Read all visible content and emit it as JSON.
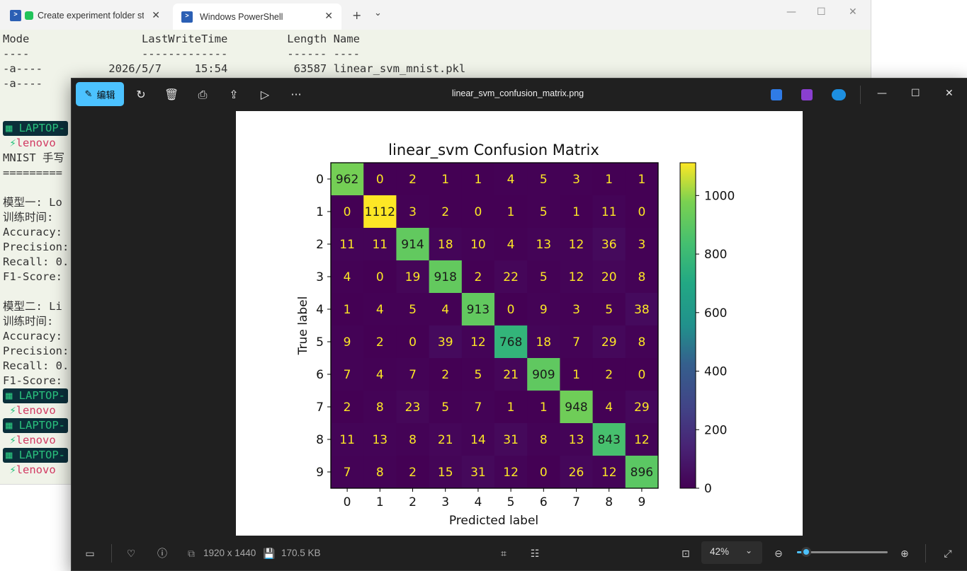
{
  "terminal": {
    "tabs": [
      {
        "label": "Create experiment folder st"
      },
      {
        "label": "Windows PowerShell"
      }
    ],
    "lines": [
      "Mode                 LastWriteTime         Length Name",
      "----                 -------------         ------ ----",
      "-a----          2026/5/7     15:54          63587 linear_svm_mnist.pkl",
      "-a----",
      "",
      "",
      "",
      "MNIST 手写",
      "=========",
      "",
      "模型一: Lo",
      "训练时间:",
      "Accuracy:",
      "Precision:",
      "Recall: 0.",
      "F1-Score:",
      "",
      "模型二: Li",
      "训练时间:",
      "Accuracy:",
      "Precision:",
      "Recall: 0.",
      "F1-Score:"
    ],
    "prompt_host": "LAPTOP-",
    "prompt_user": "lenovo"
  },
  "viewer": {
    "edit_label": "编辑",
    "file_title": "linear_svm_confusion_matrix.png",
    "dimensions": "1920 x 1440",
    "file_size": "170.5 KB",
    "zoom": "42%",
    "zoom_fraction": 0.1
  },
  "colors": {
    "accent": "#4cc2ff",
    "terminal_bg": "#f0f3e9",
    "viewer_bg": "#202020",
    "cmap": "viridis"
  },
  "chart_data": {
    "type": "heatmap",
    "title": "linear_svm Confusion Matrix",
    "xlabel": "Predicted label",
    "ylabel": "True label",
    "x_categories": [
      "0",
      "1",
      "2",
      "3",
      "4",
      "5",
      "6",
      "7",
      "8",
      "9"
    ],
    "y_categories": [
      "0",
      "1",
      "2",
      "3",
      "4",
      "5",
      "6",
      "7",
      "8",
      "9"
    ],
    "matrix": [
      [
        962,
        0,
        2,
        1,
        1,
        4,
        5,
        3,
        1,
        1
      ],
      [
        0,
        1112,
        3,
        2,
        0,
        1,
        5,
        1,
        11,
        0
      ],
      [
        11,
        11,
        914,
        18,
        10,
        4,
        13,
        12,
        36,
        3
      ],
      [
        4,
        0,
        19,
        918,
        2,
        22,
        5,
        12,
        20,
        8
      ],
      [
        1,
        4,
        5,
        4,
        913,
        0,
        9,
        3,
        5,
        38
      ],
      [
        9,
        2,
        0,
        39,
        12,
        768,
        18,
        7,
        29,
        8
      ],
      [
        7,
        4,
        7,
        2,
        5,
        21,
        909,
        1,
        2,
        0
      ],
      [
        2,
        8,
        23,
        5,
        7,
        1,
        1,
        948,
        4,
        29
      ],
      [
        11,
        13,
        8,
        21,
        14,
        31,
        8,
        13,
        843,
        12
      ],
      [
        7,
        8,
        2,
        15,
        31,
        12,
        0,
        26,
        12,
        896
      ]
    ],
    "colorbar_ticks": [
      0,
      200,
      400,
      600,
      800,
      1000
    ],
    "colorbar_range": [
      0,
      1112
    ],
    "colormap": "viridis"
  }
}
